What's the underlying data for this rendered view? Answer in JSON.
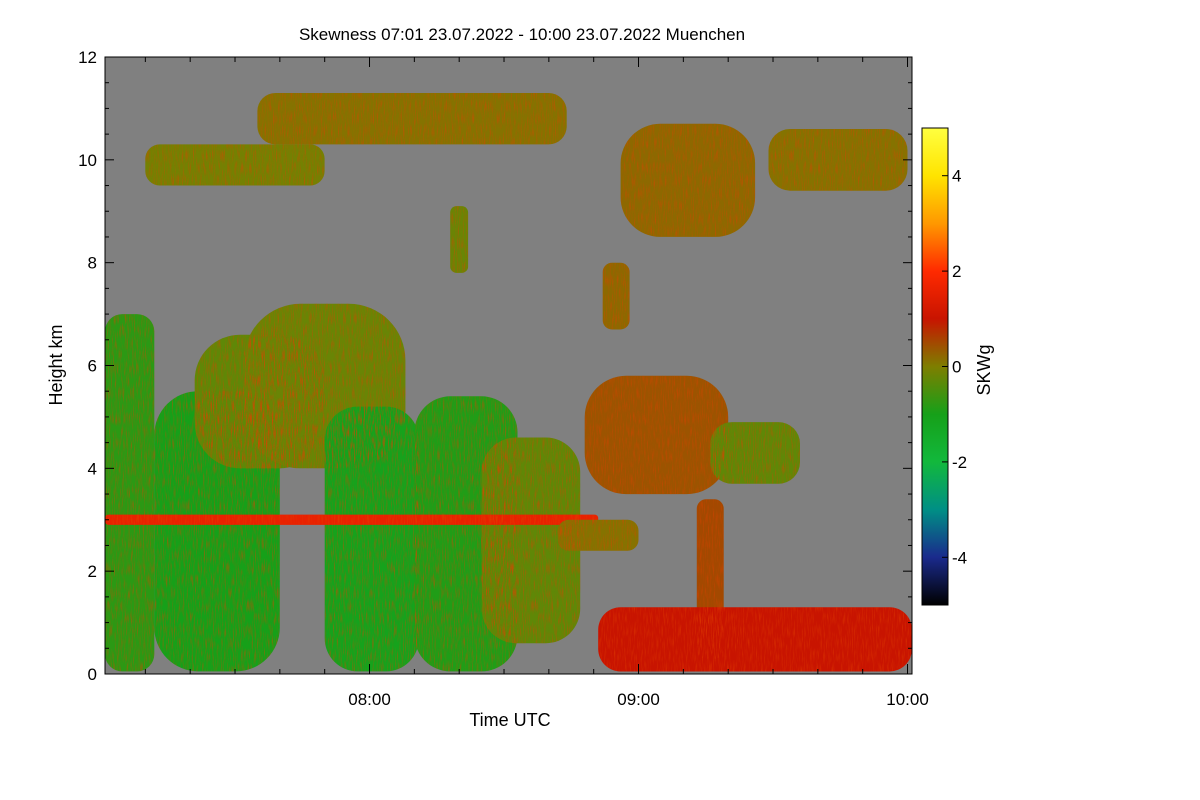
{
  "chart_data": {
    "type": "heatmap",
    "title": "Skewness   07:01 23.07.2022 - 10:00 23.07.2022 Muenchen",
    "xlabel": "Time UTC",
    "ylabel": "Height km",
    "x_range": [
      "07:01",
      "10:00"
    ],
    "x_range_minutes": [
      421,
      600
    ],
    "xlim_minutes": [
      421,
      601
    ],
    "x_ticks": [
      {
        "label": "08:00",
        "minutes": 480
      },
      {
        "label": "09:00",
        "minutes": 540
      },
      {
        "label": "10:00",
        "minutes": 600
      }
    ],
    "ylim": [
      0,
      12
    ],
    "y_ticks": [
      0,
      2,
      4,
      6,
      8,
      10,
      12
    ],
    "colorbar": {
      "label": "SKWg",
      "range": [
        -5,
        5
      ],
      "ticks": [
        -4,
        -2,
        0,
        2,
        4
      ],
      "colors": [
        "#000000",
        "#1a2a8c",
        "#008f85",
        "#12b83c",
        "#16a019",
        "#7e7e00",
        "#c81400",
        "#ff2a00",
        "#ff9800",
        "#ffe400",
        "#ffff40"
      ]
    },
    "background_color": "#808080",
    "regions": [
      {
        "t0": 421,
        "t1": 432,
        "h0": 0.05,
        "h1": 7.0,
        "skew": -0.8
      },
      {
        "t0": 432,
        "t1": 460,
        "h0": 0.05,
        "h1": 5.5,
        "skew": -1.0
      },
      {
        "t0": 441,
        "t1": 470,
        "h0": 4.0,
        "h1": 6.6,
        "skew": -0.3
      },
      {
        "t0": 452,
        "t1": 488,
        "h0": 4.0,
        "h1": 7.2,
        "skew": -0.2
      },
      {
        "t0": 470,
        "t1": 491,
        "h0": 0.05,
        "h1": 5.2,
        "skew": -1.1
      },
      {
        "t0": 490,
        "t1": 513,
        "h0": 0.05,
        "h1": 5.4,
        "skew": -0.9
      },
      {
        "t0": 505,
        "t1": 527,
        "h0": 0.6,
        "h1": 4.6,
        "skew": -0.3
      },
      {
        "t0": 421,
        "t1": 531,
        "h0": 2.9,
        "h1": 3.1,
        "skew": 1.6
      },
      {
        "t0": 430,
        "t1": 470,
        "h0": 9.5,
        "h1": 10.3,
        "skew": -0.1
      },
      {
        "t0": 455,
        "t1": 524,
        "h0": 10.3,
        "h1": 11.3,
        "skew": 0.1
      },
      {
        "t0": 498,
        "t1": 502,
        "h0": 7.8,
        "h1": 9.1,
        "skew": -0.2
      },
      {
        "t0": 532,
        "t1": 538,
        "h0": 6.7,
        "h1": 8.0,
        "skew": 0.2
      },
      {
        "t0": 536,
        "t1": 566,
        "h0": 8.5,
        "h1": 10.7,
        "skew": 0.2
      },
      {
        "t0": 569,
        "t1": 600,
        "h0": 9.4,
        "h1": 10.6,
        "skew": 0.1
      },
      {
        "t0": 528,
        "t1": 560,
        "h0": 3.5,
        "h1": 5.8,
        "skew": 0.4
      },
      {
        "t0": 556,
        "t1": 576,
        "h0": 3.7,
        "h1": 4.9,
        "skew": -0.3
      },
      {
        "t0": 553,
        "t1": 559,
        "h0": 0.3,
        "h1": 3.4,
        "skew": 0.5
      },
      {
        "t0": 522,
        "t1": 540,
        "h0": 2.4,
        "h1": 3.0,
        "skew": 0.1
      },
      {
        "t0": 531,
        "t1": 601,
        "h0": 0.05,
        "h1": 1.3,
        "skew": 1.0
      }
    ]
  }
}
